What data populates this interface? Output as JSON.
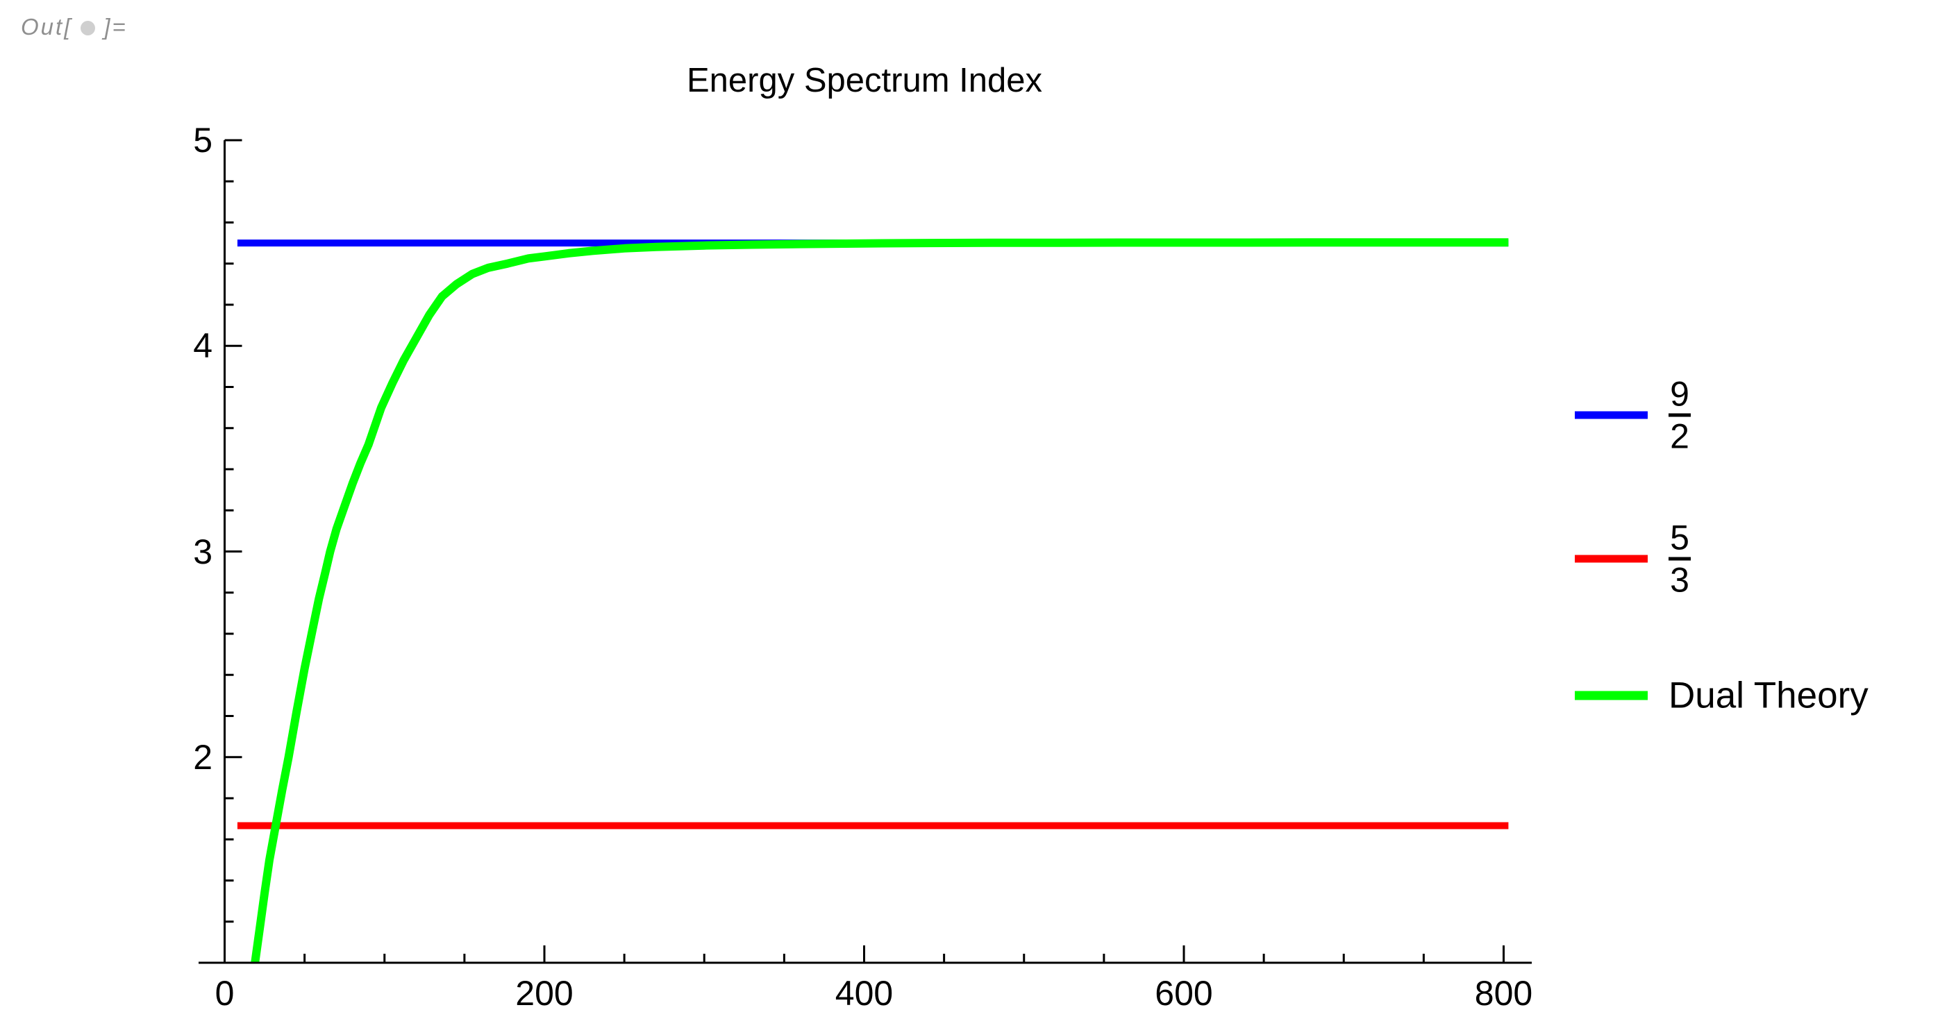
{
  "out_label": {
    "prefix": "Out[",
    "suffix": "]="
  },
  "title": "Energy Spectrum Index",
  "colors": {
    "blue": "#0000ff",
    "red": "#ff0000",
    "green": "#00ff00",
    "axis": "#000000",
    "out_gray": "#8f8f8f",
    "bullet_gray": "#cfcfcf"
  },
  "chart_data": {
    "type": "line",
    "title": "Energy Spectrum Index",
    "xlabel": "",
    "ylabel": "",
    "xlim": [
      0,
      818
    ],
    "ylim": [
      1,
      5
    ],
    "grid": false,
    "legend_position": "right",
    "x_ticks": [
      {
        "value": 0,
        "label": "0"
      },
      {
        "value": 200,
        "label": "200"
      },
      {
        "value": 400,
        "label": "400"
      },
      {
        "value": 600,
        "label": "600"
      },
      {
        "value": 800,
        "label": "800"
      }
    ],
    "x_minor_tick_step": 50,
    "y_ticks": [
      {
        "value": 2,
        "label": "2"
      },
      {
        "value": 3,
        "label": "3"
      },
      {
        "value": 4,
        "label": "4"
      },
      {
        "value": 5,
        "label": "5"
      }
    ],
    "y_minor_tick_step": 0.2,
    "series": [
      {
        "name": "9/2",
        "type": "hline",
        "value": 4.5,
        "x_start": 8,
        "x_end": 803,
        "color": "#0000ff",
        "thickness": 10
      },
      {
        "name": "5/3",
        "type": "hline",
        "value": 1.6667,
        "x_start": 8,
        "x_end": 803,
        "color": "#ff0000",
        "thickness": 10
      },
      {
        "name": "Dual Theory",
        "type": "curve",
        "color": "#00ff00",
        "thickness": 12,
        "points": [
          [
            19,
            1.0
          ],
          [
            22,
            1.17
          ],
          [
            25,
            1.34
          ],
          [
            28,
            1.5
          ],
          [
            32,
            1.67
          ],
          [
            36,
            1.84
          ],
          [
            40,
            2.0
          ],
          [
            45,
            2.22
          ],
          [
            50,
            2.43
          ],
          [
            55,
            2.62
          ],
          [
            59,
            2.77
          ],
          [
            63,
            2.9
          ],
          [
            66,
            3.0
          ],
          [
            70,
            3.11
          ],
          [
            75,
            3.22
          ],
          [
            80,
            3.33
          ],
          [
            85,
            3.43
          ],
          [
            90,
            3.52
          ],
          [
            98,
            3.7
          ],
          [
            105,
            3.82
          ],
          [
            112,
            3.93
          ],
          [
            120,
            4.04
          ],
          [
            128,
            4.15
          ],
          [
            136,
            4.24
          ],
          [
            145,
            4.3
          ],
          [
            155,
            4.35
          ],
          [
            165,
            4.38
          ],
          [
            177,
            4.4
          ],
          [
            190,
            4.425
          ],
          [
            200,
            4.435
          ],
          [
            215,
            4.45
          ],
          [
            230,
            4.462
          ],
          [
            250,
            4.474
          ],
          [
            270,
            4.481
          ],
          [
            300,
            4.488
          ],
          [
            330,
            4.492
          ],
          [
            360,
            4.495
          ],
          [
            400,
            4.498
          ],
          [
            440,
            4.5
          ],
          [
            480,
            4.501
          ],
          [
            520,
            4.501
          ],
          [
            560,
            4.502
          ],
          [
            600,
            4.502
          ],
          [
            640,
            4.502
          ],
          [
            680,
            4.503
          ],
          [
            720,
            4.503
          ],
          [
            760,
            4.503
          ],
          [
            803,
            4.503
          ]
        ]
      }
    ]
  },
  "legend": {
    "items": [
      {
        "kind": "fraction",
        "numerator": "9",
        "denominator": "2",
        "color": "#0000ff"
      },
      {
        "kind": "fraction",
        "numerator": "5",
        "denominator": "3",
        "color": "#ff0000"
      },
      {
        "kind": "text",
        "label": "Dual Theory",
        "color": "#00ff00"
      }
    ]
  }
}
